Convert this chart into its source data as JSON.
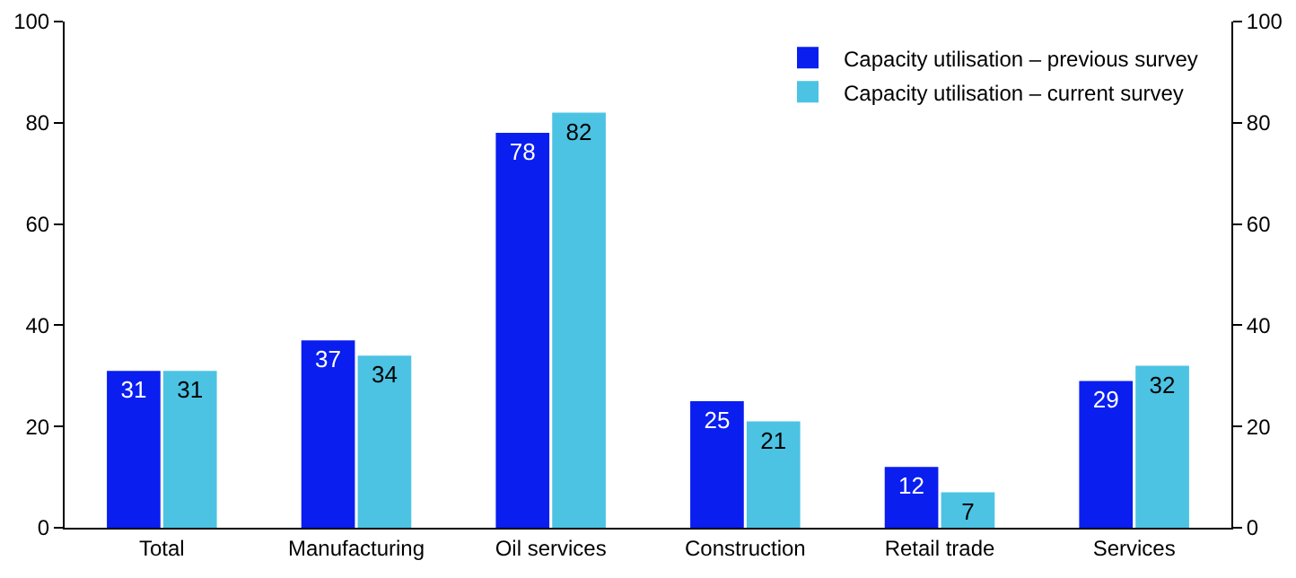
{
  "chart_data": {
    "type": "bar",
    "categories": [
      "Total",
      "Manufacturing",
      "Oil services",
      "Construction",
      "Retail trade",
      "Services"
    ],
    "series": [
      {
        "name": "Capacity utilisation – previous survey",
        "color": "#0a1ef0",
        "values": [
          31,
          37,
          78,
          25,
          12,
          29
        ]
      },
      {
        "name": "Capacity utilisation – current survey",
        "color": "#4cc3e3",
        "values": [
          31,
          34,
          82,
          21,
          7,
          32
        ]
      }
    ],
    "ylim": [
      0,
      100
    ],
    "yticks": [
      0,
      20,
      40,
      60,
      80,
      100
    ],
    "y2lim": [
      0,
      100
    ],
    "y2ticks": [
      0,
      20,
      40,
      60,
      80,
      100
    ],
    "data_labels": true,
    "grid": false,
    "legend": "top right"
  }
}
